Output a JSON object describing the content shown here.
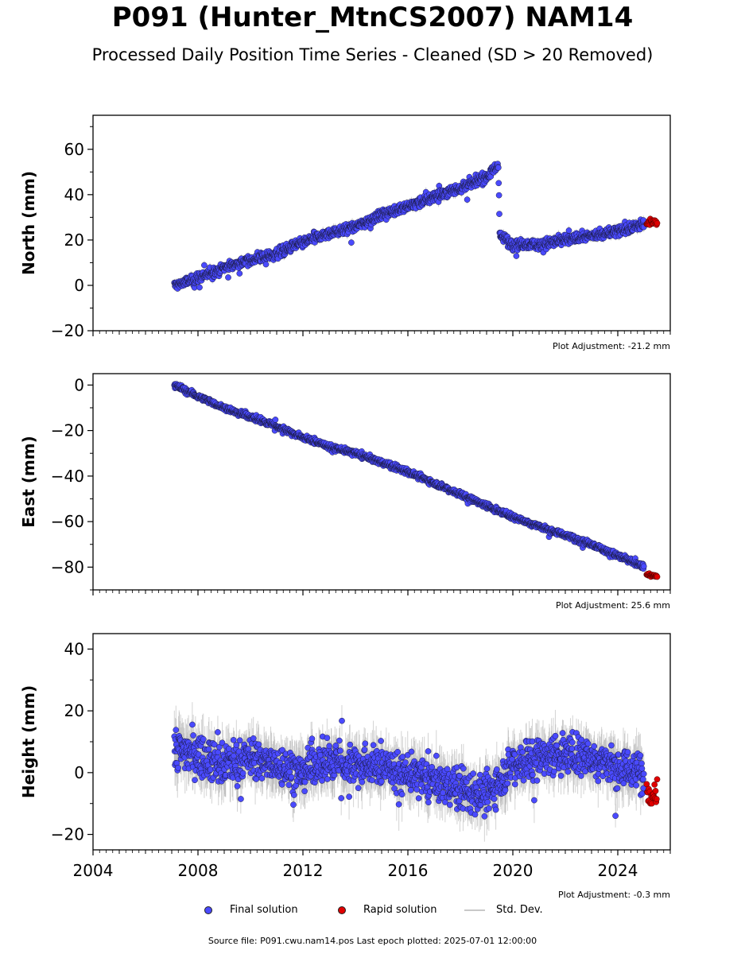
{
  "title": "P091 (Hunter_MtnCS2007) NAM14",
  "subtitle": "Processed Daily Position Time Series - Cleaned (SD > 20 Removed)",
  "source_line": "Source file: P091.cwu.nam14.pos  Last epoch plotted: 2025-07-01 12:00:00",
  "legend": {
    "final_label": "Final solution",
    "rapid_label": "Rapid solution",
    "std_label": "Std. Dev."
  },
  "colors": {
    "final": "#4a4aff",
    "final_edge": "#1a1a40",
    "rapid": "#e00000",
    "std": "#b0b0b0"
  },
  "chart_data": [
    {
      "type": "scatter",
      "ylabel": "North (mm)",
      "xlim": [
        2004,
        2026
      ],
      "ylim": [
        -20,
        75
      ],
      "yticks": [
        "60",
        "40",
        "20",
        "0",
        "−20"
      ],
      "adjustment": "Plot Adjustment: -21.2 mm",
      "series": [
        {
          "name": "Final solution",
          "x": [
            2007.1,
            2008.0,
            2009.0,
            2010.0,
            2011.0,
            2012.0,
            2013.0,
            2014.0,
            2015.0,
            2016.0,
            2017.0,
            2018.0,
            2019.0,
            2019.45,
            2019.5,
            2020.0,
            2021.0,
            2022.0,
            2023.0,
            2024.0,
            2025.0
          ],
          "y": [
            0,
            3,
            8,
            11,
            14,
            19,
            23,
            26,
            31,
            35,
            39,
            43,
            48,
            53,
            22,
            18,
            18,
            20,
            22,
            24,
            27
          ]
        },
        {
          "name": "Rapid solution",
          "x": [
            2025.1,
            2025.5
          ],
          "y": [
            28,
            28
          ]
        }
      ]
    },
    {
      "type": "scatter",
      "ylabel": "East (mm)",
      "xlim": [
        2004,
        2026
      ],
      "ylim": [
        -90,
        5
      ],
      "yticks": [
        "0",
        "−20",
        "−40",
        "−60",
        "−80"
      ],
      "adjustment": "Plot Adjustment: 25.6 mm",
      "series": [
        {
          "name": "Final solution",
          "x": [
            2007.1,
            2008.0,
            2009.0,
            2010.0,
            2011.0,
            2012.0,
            2013.0,
            2014.0,
            2015.0,
            2016.0,
            2017.0,
            2018.0,
            2019.0,
            2020.0,
            2021.0,
            2022.0,
            2023.0,
            2024.0,
            2025.0
          ],
          "y": [
            0,
            -5,
            -10,
            -14,
            -18,
            -23,
            -27,
            -30,
            -34,
            -38,
            -43,
            -48,
            -53,
            -58,
            -62,
            -66,
            -70,
            -75,
            -80
          ]
        },
        {
          "name": "Rapid solution",
          "x": [
            2025.1,
            2025.5
          ],
          "y": [
            -83,
            -84
          ]
        }
      ]
    },
    {
      "type": "scatter",
      "ylabel": "Height (mm)",
      "xlim": [
        2004,
        2026
      ],
      "ylim": [
        -25,
        45
      ],
      "yticks": [
        "40",
        "20",
        "0",
        "−20"
      ],
      "xticks": [
        "2004",
        "2008",
        "2012",
        "2016",
        "2020",
        "2024"
      ],
      "adjustment": "Plot Adjustment: -0.3 mm",
      "series": [
        {
          "name": "Final solution",
          "x": [
            2007.1,
            2008.0,
            2009.0,
            2010.0,
            2011.0,
            2012.0,
            2013.0,
            2014.0,
            2015.0,
            2016.0,
            2017.0,
            2018.0,
            2019.0,
            2020.0,
            2021.0,
            2022.0,
            2023.0,
            2024.0,
            2025.0
          ],
          "y": [
            8,
            6,
            3,
            5,
            2,
            1,
            4,
            3,
            2,
            0,
            -3,
            -5,
            -7,
            3,
            5,
            6,
            5,
            2,
            0
          ]
        },
        {
          "name": "Rapid solution",
          "x": [
            2025.1,
            2025.5
          ],
          "y": [
            -6,
            -6
          ]
        }
      ]
    }
  ]
}
